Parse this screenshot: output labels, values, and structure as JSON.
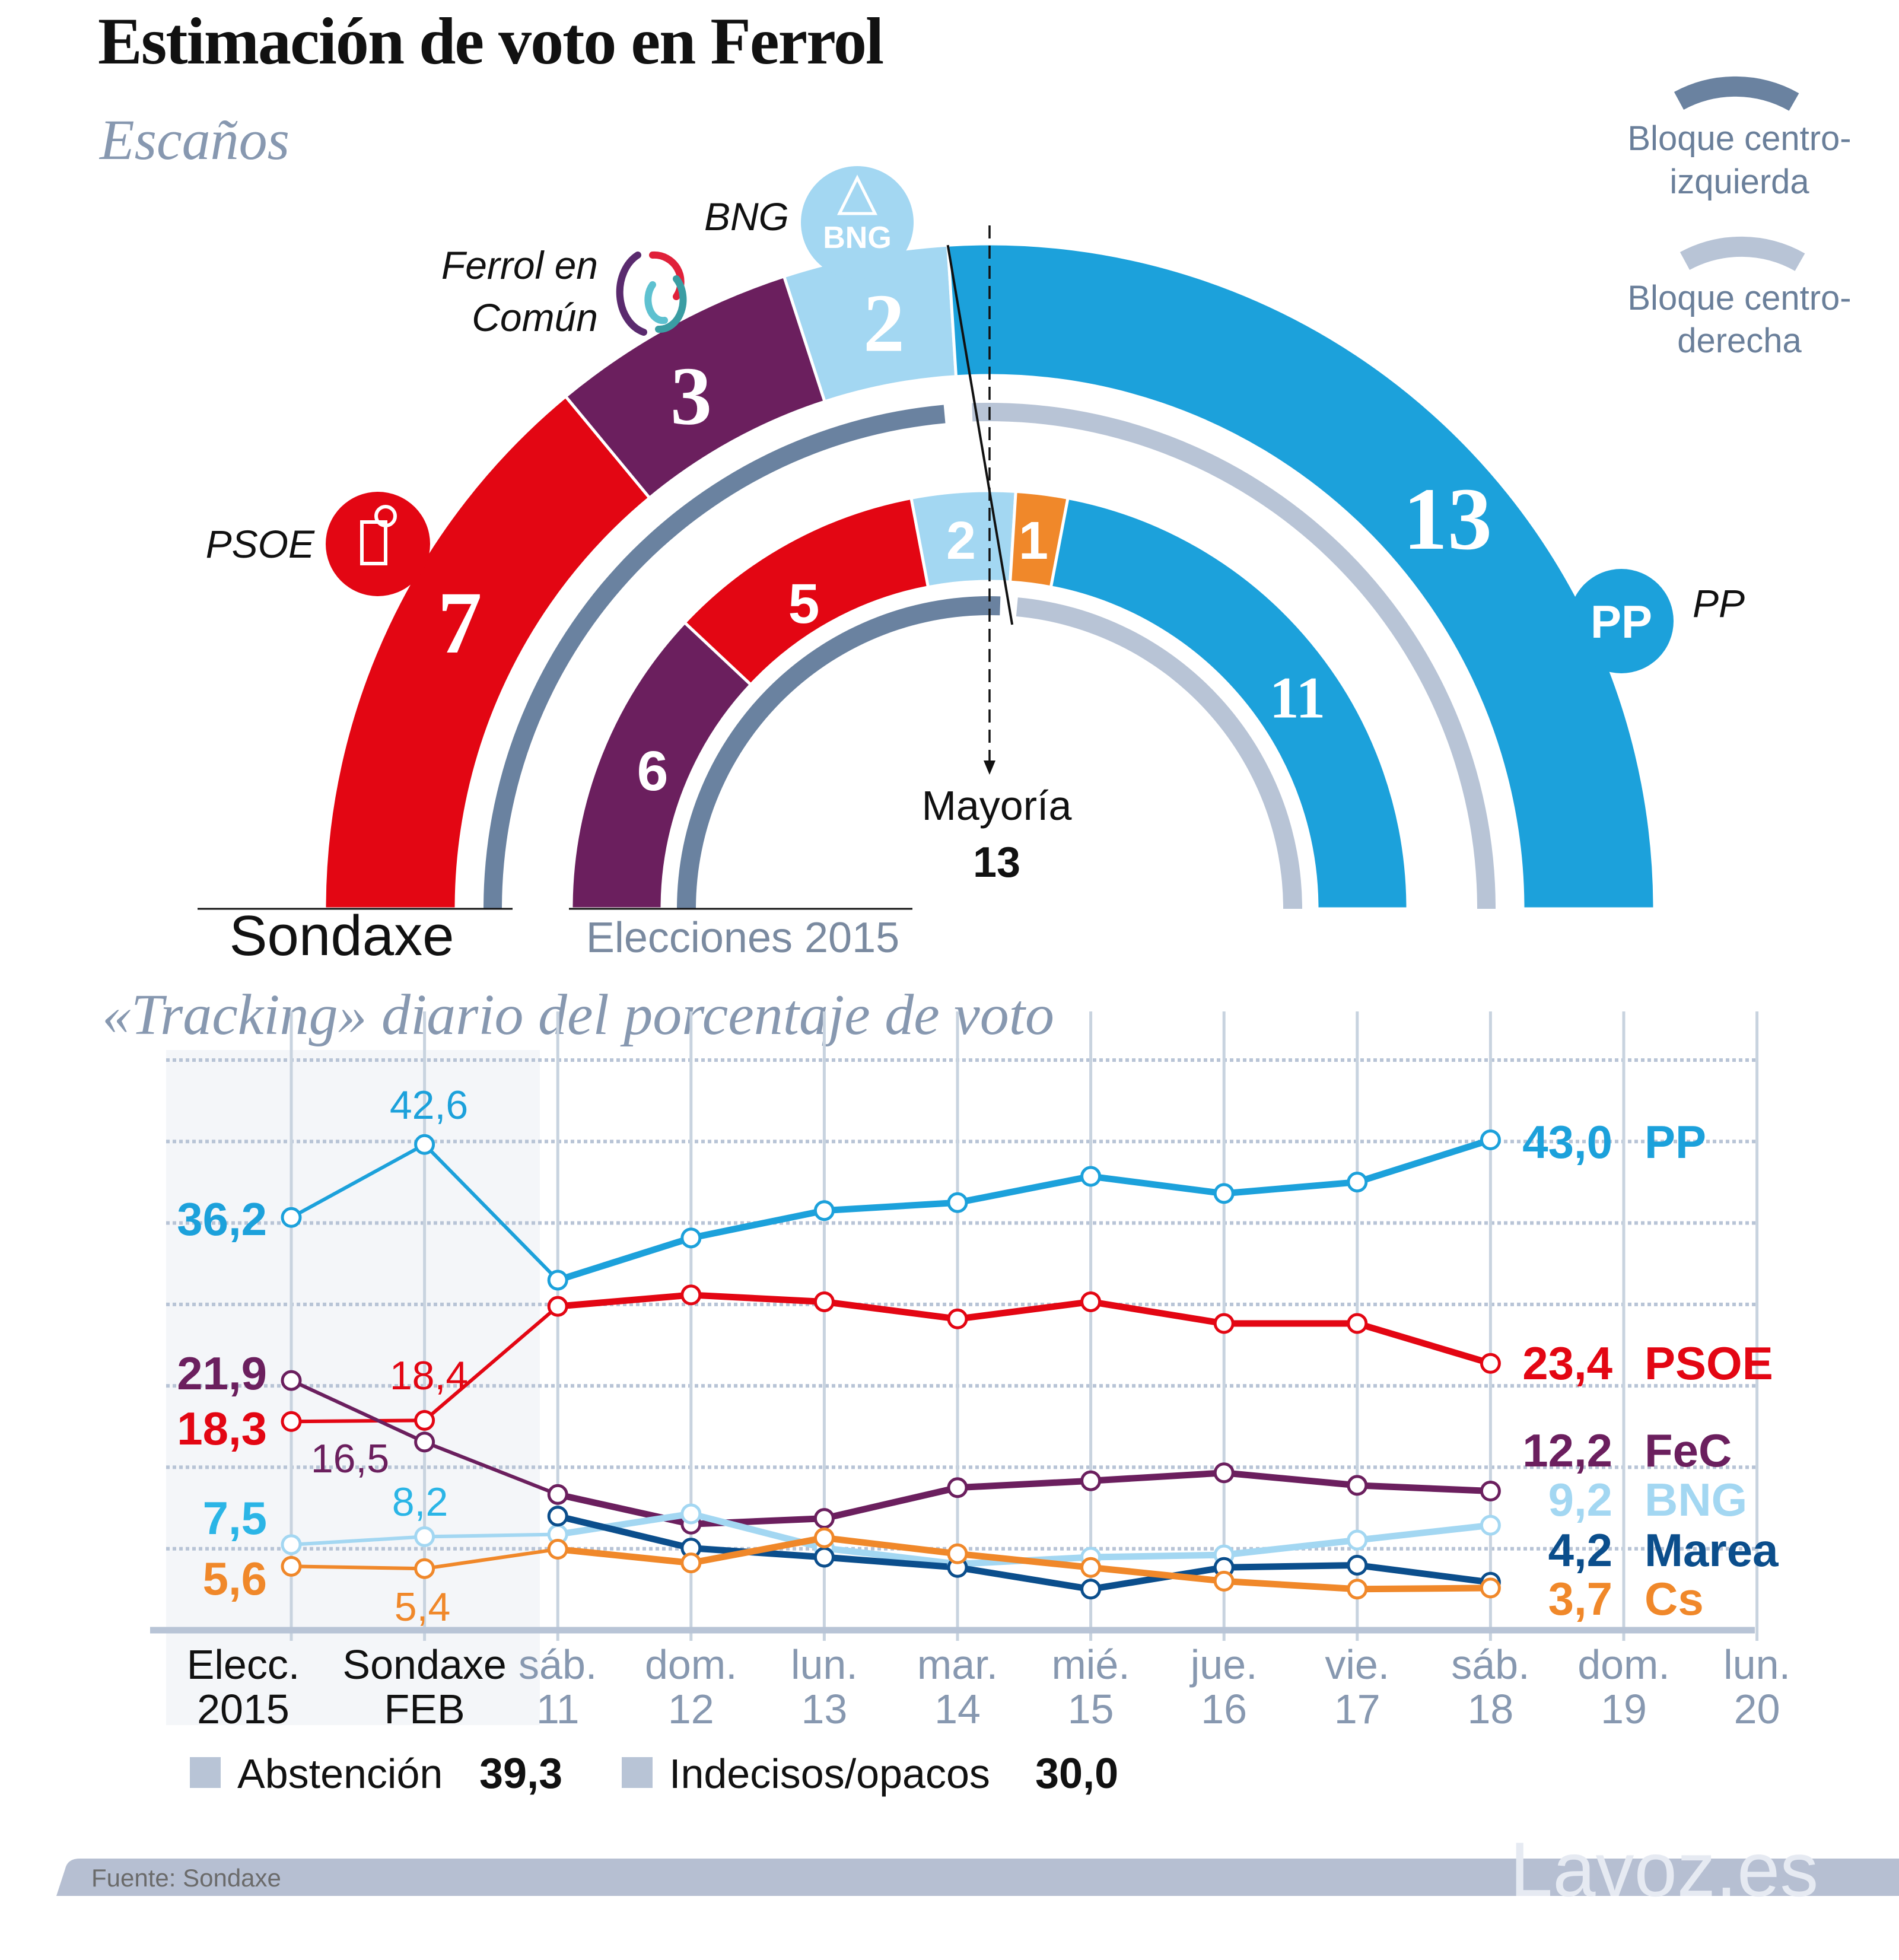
{
  "title": "Estimación de voto en Ferrol",
  "seats_subtitle": "Escaños",
  "tracking_title": "«Tracking» diario del porcentaje de voto",
  "colors": {
    "PP": "#1ca1db",
    "PSOE": "#e30613",
    "FeC": "#6b1f5e",
    "BNG": "#a3d7f2",
    "Marea": "#0b4e8c",
    "Cs": "#f0882a",
    "bloc_left": "#6a82a0",
    "bloc_right": "#b8c4d6",
    "muted_text": "#8798b0"
  },
  "legend": {
    "bloc_left": "Bloque centro-\nizquierda",
    "bloc_left_line1": "Bloque centro-",
    "bloc_left_line2": "izquierda",
    "bloc_right_line1": "Bloque centro-",
    "bloc_right_line2": "derecha"
  },
  "party_labels": {
    "bng": "BNG",
    "fec_line1": "Ferrol en",
    "fec_line2": "Común",
    "psoe": "PSOE",
    "pp": "PP",
    "bng_logo_text": "BNG",
    "pp_logo_text": "PP"
  },
  "majority": {
    "label": "Mayoría",
    "value": "13"
  },
  "arc_labels": {
    "sondaxe": "Sondaxe",
    "elecciones": "Elecciones 2015"
  },
  "footer": {
    "source": "Fuente: Sondaxe",
    "watermark": "Lavoz.es"
  },
  "extra_legend": [
    {
      "label": "Abstención",
      "value": "39,3"
    },
    {
      "label": "Indecisos/opacos",
      "value": "30,0"
    }
  ],
  "chart_data": [
    {
      "type": "pie",
      "subtype": "parliament-semicircle",
      "title": "Escaños — Sondaxe",
      "total_seats": 25,
      "majority": 13,
      "slices": [
        {
          "party": "PSOE",
          "seats": 7,
          "bloc": "left"
        },
        {
          "party": "Ferrol en Común",
          "seats": 3,
          "bloc": "left"
        },
        {
          "party": "BNG",
          "seats": 2,
          "bloc": "left"
        },
        {
          "party": "PP",
          "seats": 13,
          "bloc": "right"
        }
      ]
    },
    {
      "type": "pie",
      "subtype": "parliament-semicircle",
      "title": "Escaños — Elecciones 2015",
      "total_seats": 25,
      "majority": 13,
      "slices": [
        {
          "party": "Ferrol en Común",
          "seats": 6,
          "bloc": "left"
        },
        {
          "party": "PSOE",
          "seats": 5,
          "bloc": "left"
        },
        {
          "party": "BNG",
          "seats": 2,
          "bloc": "left"
        },
        {
          "party": "Cs",
          "seats": 1,
          "bloc": "right"
        },
        {
          "party": "PP",
          "seats": 11,
          "bloc": "right"
        }
      ]
    },
    {
      "type": "line",
      "title": "«Tracking» diario del porcentaje de voto",
      "xlabel": "",
      "ylabel": "",
      "ylim": [
        0,
        50
      ],
      "grid": true,
      "shaded_categories": [
        0,
        1
      ],
      "categories": [
        [
          "Elecc.",
          "2015"
        ],
        [
          "Sondaxe",
          "FEB"
        ],
        [
          "sáb.",
          "11"
        ],
        [
          "dom.",
          "12"
        ],
        [
          "lun.",
          "13"
        ],
        [
          "mar.",
          "14"
        ],
        [
          "mié.",
          "15"
        ],
        [
          "jue.",
          "16"
        ],
        [
          "vie.",
          "17"
        ],
        [
          "sáb.",
          "18"
        ],
        [
          "dom.",
          "19"
        ],
        [
          "lun.",
          "20"
        ]
      ],
      "series": [
        {
          "name": "PP",
          "key": "PP",
          "values": [
            36.2,
            42.6,
            30.7,
            34.4,
            36.8,
            37.5,
            39.8,
            38.3,
            39.3,
            43.0,
            null,
            null
          ],
          "labels": {
            "start": "36,2",
            "feb": "42,6",
            "end": "43,0"
          }
        },
        {
          "name": "PSOE",
          "key": "PSOE",
          "values": [
            18.3,
            18.4,
            28.4,
            29.4,
            28.8,
            27.3,
            28.8,
            26.9,
            26.9,
            23.4,
            null,
            null
          ],
          "labels": {
            "start": "18,3",
            "feb": "18,4",
            "end": "23,4"
          }
        },
        {
          "name": "FeC",
          "key": "FeC",
          "values": [
            21.9,
            16.5,
            11.9,
            9.3,
            9.8,
            12.5,
            13.1,
            13.8,
            12.7,
            12.2,
            null,
            null
          ],
          "labels": {
            "start": "21,9",
            "feb": "16,5",
            "end": "12,2"
          }
        },
        {
          "name": "BNG",
          "key": "BNG",
          "values": [
            7.5,
            8.2,
            8.4,
            10.2,
            7.2,
            5.8,
            6.4,
            6.6,
            7.9,
            9.2,
            null,
            null
          ],
          "labels": {
            "start": "7,5",
            "feb": "8,2",
            "end": "9,2"
          }
        },
        {
          "name": "Marea",
          "key": "Marea",
          "values": [
            null,
            null,
            10.0,
            7.2,
            6.4,
            5.5,
            3.6,
            5.5,
            5.7,
            4.2,
            null,
            null
          ],
          "labels": {
            "end": "4,2"
          }
        },
        {
          "name": "Cs",
          "key": "Cs",
          "values": [
            5.6,
            5.4,
            7.1,
            5.9,
            8.1,
            6.7,
            5.5,
            4.3,
            3.6,
            3.7,
            null,
            null
          ],
          "labels": {
            "start": "5,6",
            "feb": "5,4",
            "end": "3,7"
          }
        }
      ]
    }
  ]
}
